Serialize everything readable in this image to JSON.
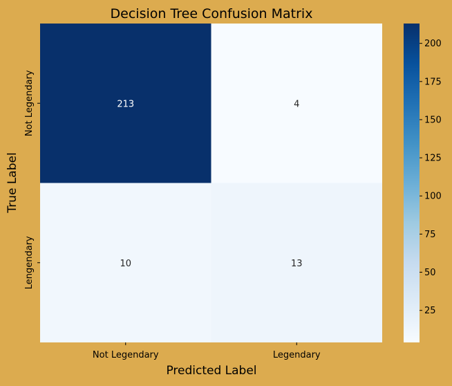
{
  "chart_data": {
    "type": "heatmap",
    "title": "Decision Tree Confusion Matrix",
    "xlabel": "Predicted Label",
    "ylabel": "True Label",
    "x_categories": [
      "Not Legendary",
      "Legendary"
    ],
    "y_categories": [
      "Not Legendary",
      "Lengendary"
    ],
    "values": [
      [
        213,
        4
      ],
      [
        10,
        13
      ]
    ],
    "colormap": "Blues",
    "colorbar": {
      "min": 4,
      "max": 213,
      "ticks": [
        25,
        50,
        75,
        100,
        125,
        150,
        175,
        200
      ]
    },
    "annotations": true,
    "colors": {
      "background": "#dcab4f",
      "low": "#f7fbff",
      "high": "#08306b"
    }
  }
}
